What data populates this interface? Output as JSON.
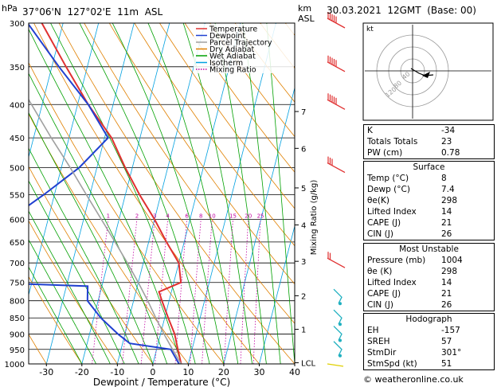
{
  "header": {
    "pressure_unit": "hPa",
    "location": "37°06'N  127°02'E  11m  ASL",
    "km_unit": "km",
    "asl_unit": "ASL",
    "datetime": "30.03.2021  12GMT  (Base: 00)"
  },
  "legend": [
    {
      "label": "Temperature",
      "color": "#e03030",
      "style": "solid"
    },
    {
      "label": "Dewpoint",
      "color": "#2040d0",
      "style": "solid"
    },
    {
      "label": "Parcel Trajectory",
      "color": "#a0a0a0",
      "style": "solid"
    },
    {
      "label": "Dry Adiabat",
      "color": "#e08000",
      "style": "solid"
    },
    {
      "label": "Wet Adiabat",
      "color": "#00a000",
      "style": "solid"
    },
    {
      "label": "Isotherm",
      "color": "#00a0e0",
      "style": "solid"
    },
    {
      "label": "Mixing Ratio",
      "color": "#c000a0",
      "style": "dotted"
    }
  ],
  "chart_data": {
    "type": "line",
    "title": "",
    "xlabel": "Dewpoint / Temperature (°C)",
    "ylabel": "",
    "right_axis_label": "Mixing Ratio (g/kg)",
    "xlim": [
      -35,
      40
    ],
    "ylim": [
      1000,
      300
    ],
    "y_scale": "log",
    "pressure_ticks": [
      300,
      350,
      400,
      450,
      500,
      550,
      600,
      650,
      700,
      750,
      800,
      850,
      900,
      950,
      1000
    ],
    "temperature_ticks": [
      -30,
      -20,
      -10,
      0,
      10,
      20,
      30,
      40
    ],
    "km_ticks": [
      {
        "label": "7",
        "p": 410
      },
      {
        "label": "6",
        "p": 467
      },
      {
        "label": "5",
        "p": 537
      },
      {
        "label": "4",
        "p": 612
      },
      {
        "label": "3",
        "p": 696
      },
      {
        "label": "2",
        "p": 786
      },
      {
        "label": "1",
        "p": 885
      },
      {
        "label": "LCL",
        "p": 996
      }
    ],
    "mixing_ratio_labels": [
      "1",
      "2",
      "3",
      "4",
      "6",
      "8",
      "10",
      "15",
      "20",
      "25"
    ],
    "series": [
      {
        "name": "Temperature",
        "points": [
          [
            1000,
            8.0
          ],
          [
            950,
            6.0
          ],
          [
            900,
            4.0
          ],
          [
            850,
            1.0
          ],
          [
            800,
            -2.0
          ],
          [
            775,
            -3.5
          ],
          [
            750,
            2.0
          ],
          [
            700,
            0.0
          ],
          [
            650,
            -5.0
          ],
          [
            600,
            -10.0
          ],
          [
            550,
            -16.0
          ],
          [
            500,
            -22.0
          ],
          [
            450,
            -28.0
          ],
          [
            400,
            -37.0
          ],
          [
            350,
            -46.0
          ],
          [
            300,
            -56.0
          ]
        ]
      },
      {
        "name": "Dewpoint",
        "points": [
          [
            1000,
            7.4
          ],
          [
            950,
            4.0
          ],
          [
            930,
            -8.0
          ],
          [
            900,
            -12.0
          ],
          [
            850,
            -18.0
          ],
          [
            800,
            -23.0
          ],
          [
            760,
            -24.0
          ],
          [
            750,
            -54.0
          ],
          [
            700,
            -53.0
          ],
          [
            650,
            -52.0
          ],
          [
            600,
            -51.0
          ],
          [
            550,
            -43.0
          ],
          [
            500,
            -35.0
          ],
          [
            450,
            -29.0
          ],
          [
            400,
            -37.0
          ],
          [
            350,
            -48.0
          ],
          [
            300,
            -60.0
          ]
        ]
      },
      {
        "name": "Parcel Trajectory",
        "points": [
          [
            1000,
            8.0
          ],
          [
            950,
            4.5
          ],
          [
            900,
            1.0
          ],
          [
            850,
            -2.5
          ],
          [
            800,
            -6.0
          ],
          [
            750,
            -10.0
          ],
          [
            700,
            -14.5
          ],
          [
            650,
            -19.5
          ],
          [
            600,
            -25.0
          ],
          [
            550,
            -31.0
          ],
          [
            500,
            -37.5
          ],
          [
            450,
            -45.0
          ],
          [
            400,
            -53.0
          ],
          [
            350,
            -62.0
          ],
          [
            300,
            -72.0
          ]
        ]
      }
    ]
  },
  "wind_barbs": [
    {
      "p": 300,
      "color": "#e03030",
      "speed": "50+"
    },
    {
      "p": 350,
      "color": "#e03030",
      "speed": "50+"
    },
    {
      "p": 400,
      "color": "#e03030",
      "speed": "50+"
    },
    {
      "p": 500,
      "color": "#e03030",
      "speed": "35"
    },
    {
      "p": 700,
      "color": "#e03030",
      "speed": "20"
    },
    {
      "p": 790,
      "color": "#20b0c0",
      "speed": "10"
    },
    {
      "p": 850,
      "color": "#20b0c0",
      "speed": "10"
    },
    {
      "p": 900,
      "color": "#20b0c0",
      "speed": "10"
    },
    {
      "p": 950,
      "color": "#20b0c0",
      "speed": "5"
    },
    {
      "p": 1000,
      "color": "#e0d000",
      "speed": "5"
    }
  ],
  "hodograph": {
    "unit_label": "kt",
    "ring_labels": [
      "40",
      "80",
      "120"
    ]
  },
  "indices": [
    {
      "label": "K",
      "value": "-34"
    },
    {
      "label": "Totals Totals",
      "value": "23"
    },
    {
      "label": "PW (cm)",
      "value": "0.78"
    }
  ],
  "surface": {
    "title": "Surface",
    "rows": [
      {
        "label": "Temp (°C)",
        "value": "8"
      },
      {
        "label": "Dewp (°C)",
        "value": "7.4"
      },
      {
        "label": "θe(K)",
        "value": "298"
      },
      {
        "label": "Lifted Index",
        "value": "14"
      },
      {
        "label": "CAPE (J)",
        "value": "21"
      },
      {
        "label": "CIN (J)",
        "value": "26"
      }
    ]
  },
  "most_unstable": {
    "title": "Most Unstable",
    "rows": [
      {
        "label": "Pressure (mb)",
        "value": "1004"
      },
      {
        "label": "θe (K)",
        "value": "298"
      },
      {
        "label": "Lifted Index",
        "value": "14"
      },
      {
        "label": "CAPE (J)",
        "value": "21"
      },
      {
        "label": "CIN (J)",
        "value": "26"
      }
    ]
  },
  "hodograph_table": {
    "title": "Hodograph",
    "rows": [
      {
        "label": "EH",
        "value": "-157"
      },
      {
        "label": "SREH",
        "value": "57"
      },
      {
        "label": "StmDir",
        "value": "301°"
      },
      {
        "label": "StmSpd (kt)",
        "value": "51"
      }
    ]
  },
  "credit": "© weatheronline.co.uk"
}
